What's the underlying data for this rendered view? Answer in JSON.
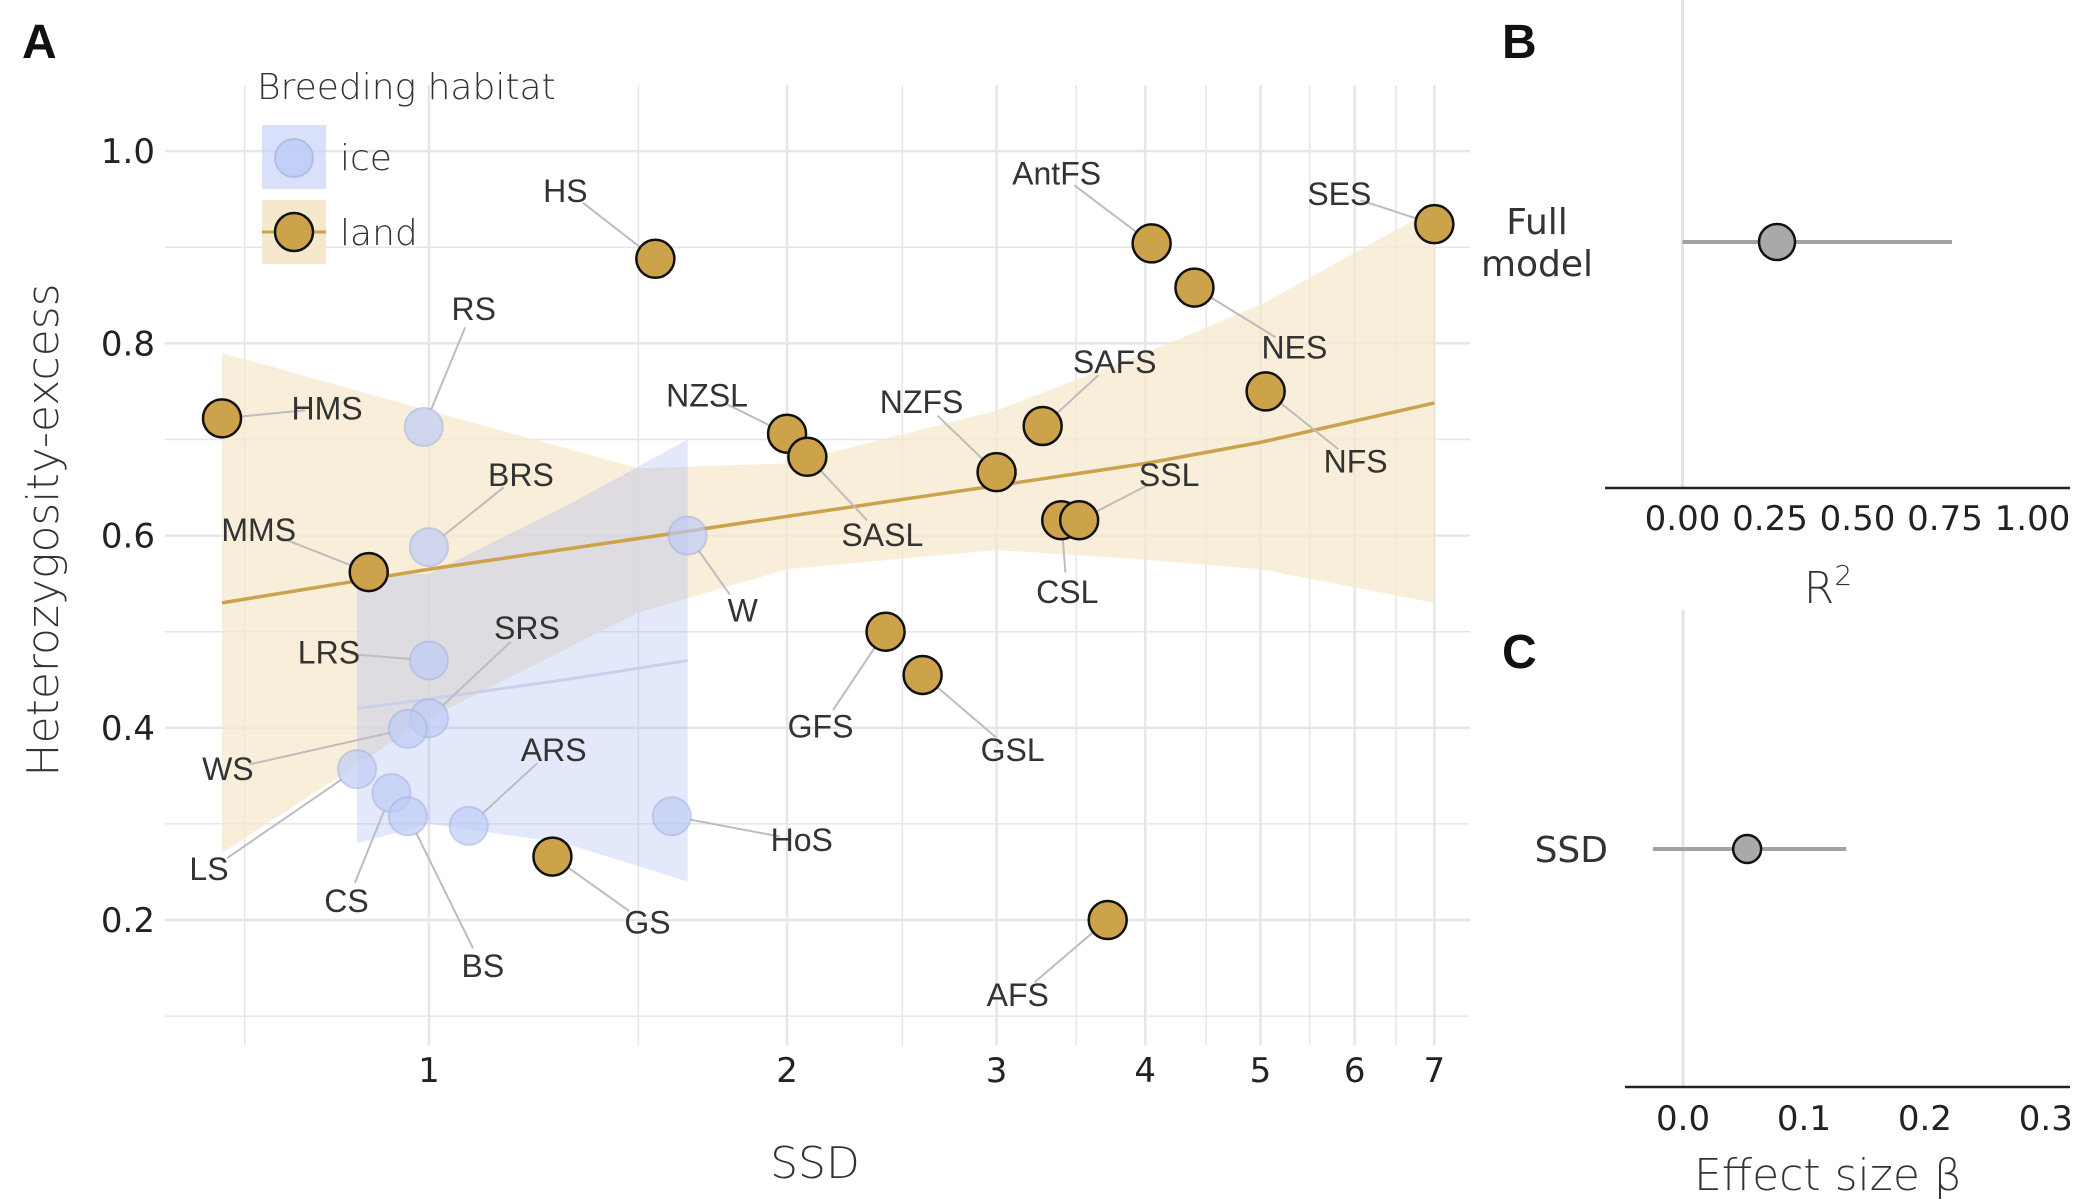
{
  "colors": {
    "land": "#CCA24B",
    "land_band": "#F5E8CC",
    "ice": "#BFCCF6",
    "ice_band": "#A9B9F2",
    "ice_line": "#C9D0EC",
    "grid": "#E6E6E6",
    "text": "#222222",
    "label": "#333333",
    "effect": "#A9A9A9"
  },
  "panel_letters": {
    "a": "A",
    "b": "B",
    "c": "C"
  },
  "chart_data": [
    {
      "type": "scatter",
      "panel": "A",
      "xlabel": "SSD",
      "ylabel": "Heterozygosity-excess",
      "x_scale": "log",
      "xlim": [
        0.6,
        7.5
      ],
      "ylim": [
        0.07,
        1.1
      ],
      "x_ticks": [
        1,
        2,
        3,
        4,
        5,
        6,
        7
      ],
      "y_ticks": [
        0.2,
        0.4,
        0.6,
        0.8,
        1.0
      ],
      "y_tick_labels": [
        "0.2",
        "0.4",
        "0.6",
        "0.8",
        "1.0"
      ],
      "grid": true,
      "legend": {
        "title": "Breeding habitat",
        "position": "top-left",
        "entries": [
          "ice",
          "land"
        ]
      },
      "series": [
        {
          "name": "land",
          "points": [
            {
              "label": "HMS",
              "x": 0.67,
              "y": 0.722
            },
            {
              "label": "MMS",
              "x": 0.89,
              "y": 0.562
            },
            {
              "label": "HS",
              "x": 1.55,
              "y": 0.888
            },
            {
              "label": "GS",
              "x": 1.27,
              "y": 0.266
            },
            {
              "label": "NZSL",
              "x": 2.0,
              "y": 0.706
            },
            {
              "label": "SASL",
              "x": 2.08,
              "y": 0.682
            },
            {
              "label": "GFS",
              "x": 2.42,
              "y": 0.5
            },
            {
              "label": "GSL",
              "x": 2.6,
              "y": 0.455
            },
            {
              "label": "NZFS",
              "x": 3.0,
              "y": 0.666
            },
            {
              "label": "SAFS",
              "x": 3.28,
              "y": 0.714
            },
            {
              "label": "CSL",
              "x": 3.4,
              "y": 0.616
            },
            {
              "label": "SSL",
              "x": 3.52,
              "y": 0.616
            },
            {
              "label": "AFS",
              "x": 3.72,
              "y": 0.2
            },
            {
              "label": "AntFS",
              "x": 4.05,
              "y": 0.904
            },
            {
              "label": "NES",
              "x": 4.4,
              "y": 0.858
            },
            {
              "label": "NFS",
              "x": 5.05,
              "y": 0.75
            },
            {
              "label": "SES",
              "x": 7.0,
              "y": 0.924
            }
          ]
        },
        {
          "name": "ice",
          "points": [
            {
              "label": "RS",
              "x": 0.99,
              "y": 0.713
            },
            {
              "label": "BRS",
              "x": 1.0,
              "y": 0.588
            },
            {
              "label": "W",
              "x": 1.65,
              "y": 0.6
            },
            {
              "label": "LRS",
              "x": 1.0,
              "y": 0.47
            },
            {
              "label": "SRS",
              "x": 1.0,
              "y": 0.41
            },
            {
              "label": "WS",
              "x": 0.96,
              "y": 0.399
            },
            {
              "label": "LS",
              "x": 0.87,
              "y": 0.357
            },
            {
              "label": "CS",
              "x": 0.93,
              "y": 0.332
            },
            {
              "label": "BS",
              "x": 0.96,
              "y": 0.308
            },
            {
              "label": "ARS",
              "x": 1.08,
              "y": 0.298
            },
            {
              "label": "HoS",
              "x": 1.6,
              "y": 0.308
            }
          ]
        }
      ],
      "fits": [
        {
          "name": "land",
          "x": [
            0.67,
            1.0,
            1.5,
            2.0,
            3.0,
            4.0,
            5.0,
            7.0
          ],
          "y": [
            0.53,
            0.565,
            0.597,
            0.62,
            0.652,
            0.675,
            0.697,
            0.738
          ],
          "lower": [
            0.27,
            0.41,
            0.52,
            0.565,
            0.585,
            0.575,
            0.565,
            0.53
          ],
          "upper": [
            0.79,
            0.73,
            0.67,
            0.675,
            0.73,
            0.79,
            0.84,
            0.94
          ]
        },
        {
          "name": "ice",
          "x": [
            0.87,
            1.0,
            1.3,
            1.65
          ],
          "y": [
            0.42,
            0.43,
            0.45,
            0.47
          ],
          "lower": [
            0.28,
            0.3,
            0.28,
            0.24
          ],
          "upper": [
            0.56,
            0.56,
            0.63,
            0.7
          ]
        }
      ]
    },
    {
      "type": "scatter",
      "panel": "B",
      "category": "Full\nmodel",
      "xlabel": "R",
      "xlabel_superscript": "2",
      "xlim": [
        -0.05,
        1.05
      ],
      "x_ticks": [
        0.0,
        0.25,
        0.5,
        0.75,
        1.0
      ],
      "x_tick_labels": [
        "0.00",
        "0.25",
        "0.50",
        "0.75",
        "1.00"
      ],
      "estimate": 0.27,
      "ci": [
        0.0,
        0.77
      ]
    },
    {
      "type": "scatter",
      "panel": "C",
      "category": "SSD",
      "xlabel": "Effect size β",
      "xlim": [
        -0.048,
        0.32
      ],
      "x_ticks": [
        0.0,
        0.1,
        0.2,
        0.3
      ],
      "x_tick_labels": [
        "0.0",
        "0.1",
        "0.2",
        "0.3"
      ],
      "estimate": 0.053,
      "ci": [
        -0.025,
        0.135
      ]
    }
  ]
}
